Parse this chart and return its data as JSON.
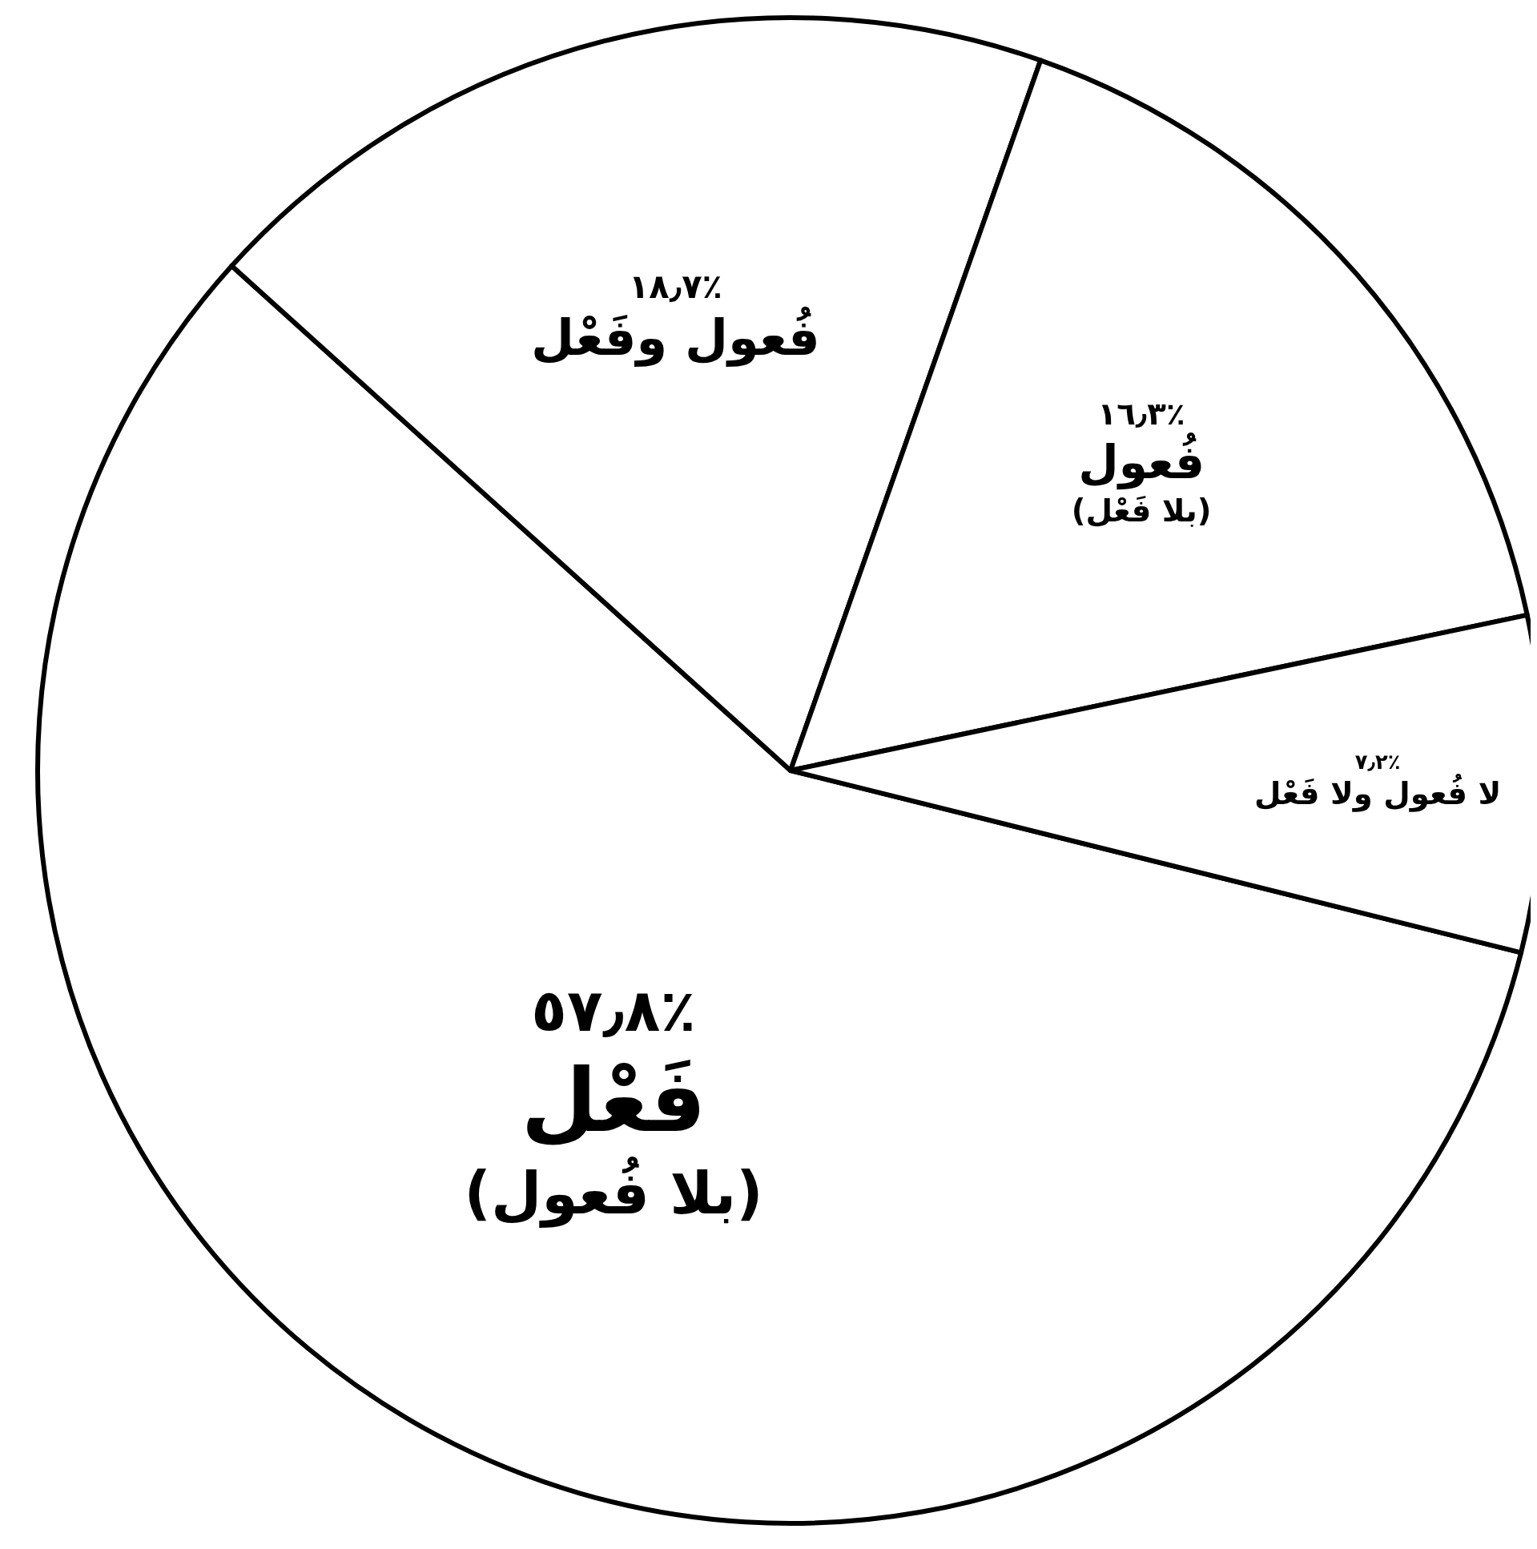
{
  "chart_data": {
    "type": "pie",
    "categories": [
      "فَعْل (بلا فُعول)",
      "فُعول وفَعْل",
      "فُعول (بلا فَعْل)",
      "لا فُعول ولا فَعْل"
    ],
    "values": [
      57.8,
      18.7,
      16.3,
      7.2
    ],
    "value_labels": [
      "٪٥٧٫٨",
      "٪١٨٫٧",
      "٪١٦٫٣",
      "٪٧٫٢"
    ],
    "colors": [
      "#ffffff",
      "#ffffff",
      "#ffffff",
      "#ffffff"
    ]
  }
}
